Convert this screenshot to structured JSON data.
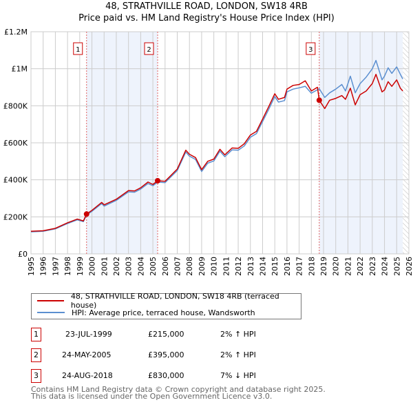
{
  "title_line1": "48, STRATHVILLE ROAD, LONDON, SW18 4RB",
  "title_line2": "Price paid vs. HM Land Registry's House Price Index (HPI)",
  "chart_data": {
    "type": "line",
    "title": "48, STRATHVILLE ROAD, LONDON, SW18 4RB — Price paid vs. HM Land Registry's House Price Index (HPI)",
    "xlim": [
      1995,
      2026
    ],
    "ylim": [
      0,
      1200000
    ],
    "x_ticks": [
      "1995",
      "1996",
      "1997",
      "1998",
      "1999",
      "2000",
      "2001",
      "2002",
      "2003",
      "2004",
      "2005",
      "2006",
      "2007",
      "2008",
      "2009",
      "2010",
      "2011",
      "2012",
      "2013",
      "2014",
      "2015",
      "2016",
      "2017",
      "2018",
      "2019",
      "2020",
      "2021",
      "2022",
      "2023",
      "2024",
      "2025",
      "2026"
    ],
    "y_ticks": [
      {
        "v": 0,
        "label": "£0"
      },
      {
        "v": 200000,
        "label": "£200K"
      },
      {
        "v": 400000,
        "label": "£400K"
      },
      {
        "v": 600000,
        "label": "£600K"
      },
      {
        "v": 800000,
        "label": "£800K"
      },
      {
        "v": 1000000,
        "label": "£1M"
      },
      {
        "v": 1200000,
        "label": "£1.2M"
      }
    ],
    "grid": true,
    "colors": {
      "price": "#cc0000",
      "hpi": "#5b8fd0",
      "shade": "#eef3fc"
    },
    "shaded_ranges": [
      [
        1999.56,
        2005.39
      ],
      [
        2018.65,
        2025.5
      ]
    ],
    "forecast_hatch_from": 2025.5,
    "series": [
      {
        "name": "price",
        "x": [
          1995,
          1996,
          1997,
          1998,
          1998.8,
          1999.3,
          1999.56,
          2000,
          2000.8,
          2001,
          2002,
          2003,
          2003.5,
          2004,
          2004.6,
          2005,
          2005.39,
          2006,
          2007,
          2007.7,
          2008,
          2008.5,
          2009,
          2009.5,
          2010,
          2010.5,
          2010.9,
          2011.5,
          2012,
          2012.5,
          2013,
          2013.5,
          2014,
          2014.5,
          2015,
          2015.3,
          2015.8,
          2016,
          2016.5,
          2017,
          2017.5,
          2018,
          2018.5,
          2018.65,
          2019.1,
          2019.5,
          2020,
          2020.5,
          2020.8,
          2021.2,
          2021.6,
          2022,
          2022.5,
          2023,
          2023.3,
          2023.8,
          2024,
          2024.3,
          2024.6,
          2025,
          2025.3,
          2025.5
        ],
        "y": [
          122000,
          125000,
          138000,
          168000,
          188000,
          178000,
          215000,
          235000,
          278000,
          265000,
          295000,
          342000,
          340000,
          357000,
          388000,
          375000,
          395000,
          392000,
          458000,
          560000,
          538000,
          520000,
          455000,
          500000,
          512000,
          565000,
          535000,
          572000,
          570000,
          595000,
          642000,
          662000,
          728000,
          795000,
          865000,
          835000,
          845000,
          890000,
          910000,
          915000,
          935000,
          880000,
          900000,
          830000,
          785000,
          830000,
          840000,
          855000,
          835000,
          895000,
          805000,
          860000,
          880000,
          920000,
          970000,
          875000,
          885000,
          930000,
          905000,
          940000,
          895000,
          880000
        ]
      },
      {
        "name": "hpi",
        "x": [
          1995,
          1996,
          1997,
          1998,
          1998.8,
          1999.3,
          1999.56,
          2000,
          2000.8,
          2001,
          2002,
          2003,
          2003.5,
          2004,
          2004.6,
          2005,
          2005.39,
          2006,
          2007,
          2007.7,
          2008,
          2008.5,
          2009,
          2009.5,
          2010,
          2010.5,
          2010.9,
          2011.5,
          2012,
          2012.5,
          2013,
          2013.5,
          2014,
          2014.5,
          2015,
          2015.3,
          2015.8,
          2016,
          2016.5,
          2017,
          2017.5,
          2018,
          2018.65,
          2019.1,
          2019.5,
          2020,
          2020.5,
          2020.8,
          2021.2,
          2021.6,
          2022,
          2022.5,
          2023,
          2023.3,
          2023.8,
          2024,
          2024.3,
          2024.6,
          2025,
          2025.3,
          2025.5
        ],
        "y": [
          119000,
          122000,
          135000,
          164000,
          184000,
          174000,
          210000,
          230000,
          272000,
          258000,
          289000,
          335000,
          333000,
          350000,
          380000,
          368000,
          388000,
          385000,
          450000,
          550000,
          528000,
          510000,
          445000,
          490000,
          502000,
          555000,
          525000,
          562000,
          560000,
          583000,
          630000,
          650000,
          715000,
          780000,
          850000,
          820000,
          828000,
          875000,
          890000,
          897000,
          905000,
          868000,
          892000,
          845000,
          870000,
          890000,
          915000,
          880000,
          960000,
          870000,
          920000,
          955000,
          1000000,
          1045000,
          940000,
          960000,
          1005000,
          975000,
          1010000,
          970000,
          945000
        ]
      }
    ],
    "sales": [
      {
        "n": "1",
        "x": 1999.56,
        "y": 215000
      },
      {
        "n": "2",
        "x": 2005.39,
        "y": 395000
      },
      {
        "n": "3",
        "x": 2018.65,
        "y": 830000
      }
    ]
  },
  "legend": {
    "price_label": "48, STRATHVILLE ROAD, LONDON, SW18 4RB (terraced house)",
    "hpi_label": "HPI: Average price, terraced house, Wandsworth"
  },
  "transactions": [
    {
      "n": "1",
      "date": "23-JUL-1999",
      "price": "£215,000",
      "delta": "2% ↑ HPI"
    },
    {
      "n": "2",
      "date": "24-MAY-2005",
      "price": "£395,000",
      "delta": "2% ↑ HPI"
    },
    {
      "n": "3",
      "date": "24-AUG-2018",
      "price": "£830,000",
      "delta": "7% ↓ HPI"
    }
  ],
  "footer": {
    "line1": "Contains HM Land Registry data © Crown copyright and database right 2025.",
    "line2": "This data is licensed under the Open Government Licence v3.0."
  }
}
